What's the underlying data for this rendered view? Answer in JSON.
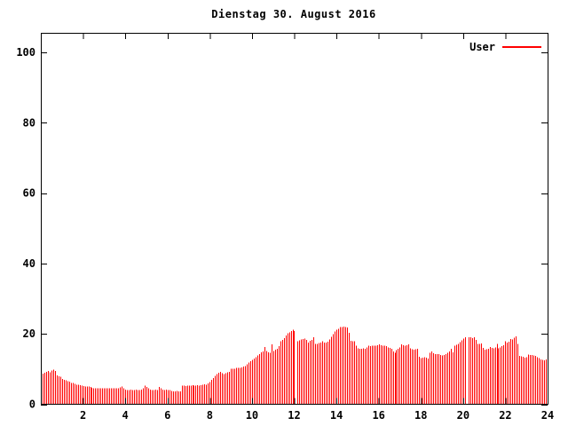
{
  "chart": {
    "title": "Dienstag 30. August 2016",
    "legend_label": "User",
    "series_color": "#ff0000",
    "axis_color": "#000000",
    "background_color": "#ffffff"
  },
  "chart_data": {
    "type": "bar",
    "title": "Dienstag 30. August 2016",
    "legend": [
      "User"
    ],
    "legend_position": "top-right-inside",
    "xlabel": "",
    "ylabel": "",
    "unit": "percent",
    "xlim": [
      0,
      24
    ],
    "ylim": [
      0,
      105.6
    ],
    "xticks": [
      2,
      4,
      6,
      8,
      10,
      12,
      14,
      16,
      18,
      20,
      22,
      24
    ],
    "yticks": [
      0,
      20,
      40,
      60,
      80,
      100
    ],
    "grid": false,
    "interval_minutes": 5,
    "start_hour": 0.0833,
    "gap_note": "zero values are missing samples (white gap lines at ~12:05 and ~20:10)",
    "values": [
      8.7,
      8.9,
      9.2,
      9.4,
      9.1,
      9.6,
      9.8,
      9.5,
      8.2,
      8.0,
      7.8,
      7.2,
      7.0,
      6.8,
      6.6,
      6.4,
      6.1,
      6.0,
      5.8,
      5.6,
      5.5,
      5.4,
      5.3,
      5.2,
      5.1,
      5.0,
      5.0,
      4.9,
      4.7,
      4.6,
      4.5,
      4.5,
      4.6,
      4.5,
      4.5,
      4.5,
      4.5,
      4.5,
      4.6,
      4.5,
      4.5,
      4.5,
      4.6,
      4.5,
      4.8,
      5.0,
      4.6,
      4.2,
      4.1,
      4.1,
      4.2,
      4.1,
      4.1,
      4.2,
      4.1,
      4.1,
      4.2,
      4.5,
      5.3,
      4.9,
      4.5,
      4.2,
      4.1,
      4.1,
      4.2,
      4.1,
      4.9,
      4.5,
      4.2,
      4.1,
      4.2,
      4.1,
      4.0,
      3.8,
      3.7,
      3.7,
      3.8,
      3.7,
      3.7,
      5.3,
      5.3,
      5.2,
      5.3,
      5.3,
      5.3,
      5.4,
      5.3,
      5.3,
      5.4,
      5.3,
      5.4,
      5.5,
      5.7,
      5.6,
      5.9,
      6.3,
      6.9,
      7.5,
      8.1,
      8.6,
      9.0,
      9.2,
      8.8,
      8.6,
      8.8,
      9.1,
      9.2,
      10.1,
      10.1,
      10.1,
      10.3,
      10.3,
      10.3,
      10.5,
      10.7,
      10.9,
      11.3,
      11.8,
      12.2,
      12.6,
      13.0,
      13.4,
      13.9,
      14.3,
      14.7,
      15.0,
      16.3,
      15.2,
      14.7,
      14.6,
      17.0,
      15.2,
      15.5,
      15.8,
      16.5,
      17.9,
      18.3,
      18.8,
      19.5,
      20.2,
      20.5,
      20.8,
      21.2,
      20.8,
      0,
      17.9,
      18.2,
      18.4,
      18.6,
      18.7,
      18.3,
      17.5,
      18.0,
      18.3,
      19.0,
      17.1,
      17.2,
      17.4,
      17.6,
      17.9,
      17.6,
      17.5,
      17.8,
      18.4,
      19.2,
      19.9,
      20.7,
      21.2,
      21.5,
      21.9,
      22.0,
      22.1,
      21.9,
      21.8,
      20.3,
      18.0,
      17.9,
      17.9,
      16.6,
      15.9,
      15.8,
      15.8,
      15.9,
      15.8,
      16.2,
      16.6,
      16.5,
      16.6,
      16.7,
      16.6,
      16.8,
      17.0,
      16.8,
      16.6,
      16.7,
      16.5,
      16.2,
      16.0,
      15.8,
      15.0,
      14.6,
      15.4,
      15.8,
      16.2,
      17.0,
      16.8,
      16.7,
      16.8,
      17.0,
      15.9,
      15.7,
      15.5,
      15.6,
      15.8,
      13.5,
      13.1,
      13.3,
      13.4,
      13.2,
      13.0,
      14.6,
      15.0,
      14.5,
      14.3,
      14.2,
      14.2,
      14.0,
      13.9,
      14.0,
      14.2,
      14.6,
      15.0,
      15.8,
      14.7,
      16.6,
      16.9,
      17.2,
      17.7,
      18.2,
      18.7,
      19.0,
      0,
      19.1,
      19.0,
      18.8,
      19.1,
      18.3,
      17.2,
      17.1,
      17.3,
      16.0,
      15.5,
      15.6,
      15.8,
      16.3,
      16.0,
      15.9,
      16.1,
      17.1,
      15.9,
      16.2,
      16.5,
      16.8,
      17.9,
      17.5,
      17.8,
      18.6,
      18.4,
      18.9,
      19.3,
      17.1,
      13.8,
      13.6,
      13.5,
      13.2,
      13.4,
      14.1,
      14.0,
      14.0,
      13.9,
      13.8,
      13.4,
      13.1,
      12.8,
      12.6,
      12.5,
      12.7,
      11.9
    ]
  }
}
